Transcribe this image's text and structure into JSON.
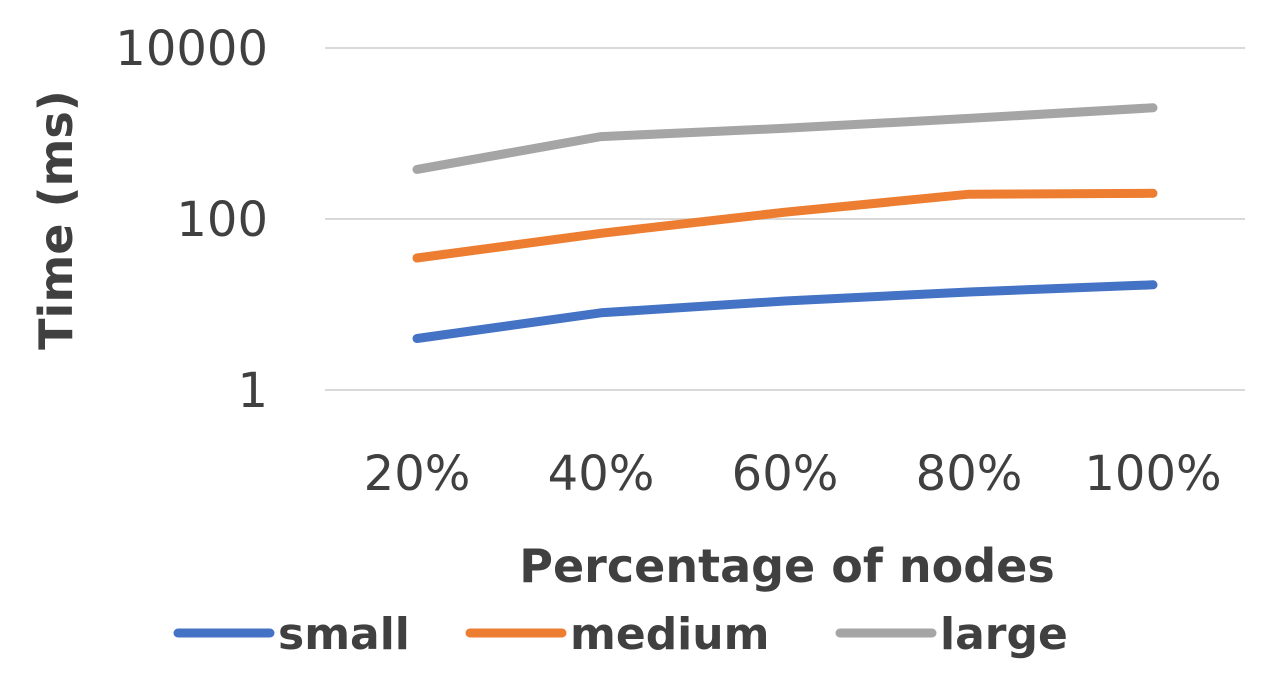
{
  "chart_data": {
    "type": "line",
    "x_axis": {
      "label": "Percentage of nodes",
      "categories": [
        "20%",
        "40%",
        "60%",
        "80%",
        "100%"
      ]
    },
    "y_axis": {
      "label": "Time (ms)",
      "scale": "log",
      "range": [
        1,
        10000
      ],
      "tick_values": [
        1,
        100,
        10000
      ],
      "tick_labels": [
        "1",
        "100",
        "10000"
      ]
    },
    "series": [
      {
        "name": "small",
        "color": "#4472C4",
        "values": [
          4,
          8,
          11,
          14,
          17
        ]
      },
      {
        "name": "medium",
        "color": "#ED7D31",
        "values": [
          35,
          68,
          120,
          195,
          200
        ]
      },
      {
        "name": "large",
        "color": "#A5A5A5",
        "values": [
          380,
          920,
          1150,
          1500,
          2000
        ]
      }
    ],
    "grid": true,
    "legend_position": "bottom"
  }
}
